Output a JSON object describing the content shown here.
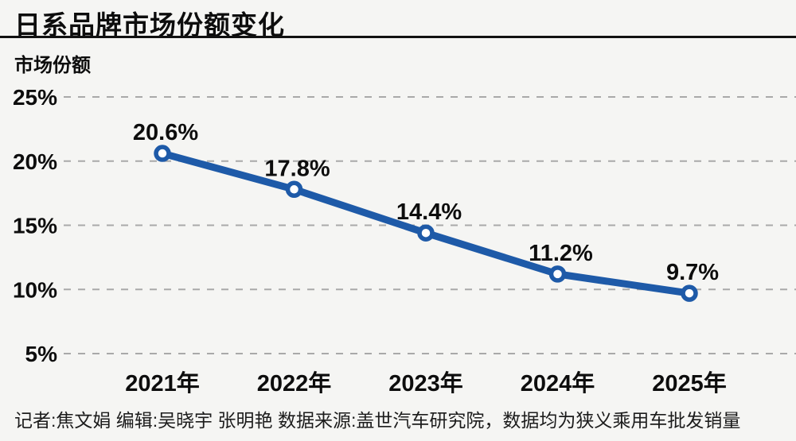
{
  "page": {
    "title": "日系品牌市场份额变化",
    "footer": "记者:焦文娟  编辑:吴晓宇 张明艳  数据来源:盖世汽车研究院，数据均为狭义乘用车批发销量",
    "background_color": "#f5f5f3"
  },
  "chart_data": {
    "type": "line",
    "title": "日系品牌市场份额变化",
    "xlabel": "",
    "ylabel": "市场份额",
    "categories": [
      "2021年",
      "2022年",
      "2023年",
      "2024年",
      "2025年"
    ],
    "values": [
      20.6,
      17.8,
      14.4,
      11.2,
      9.7
    ],
    "data_labels": [
      "20.6%",
      "17.8%",
      "14.4%",
      "11.2%",
      "9.7%"
    ],
    "y_tick_values": [
      25,
      20,
      15,
      10,
      5
    ],
    "y_tick_labels": [
      "25%",
      "20%",
      "15%",
      "10%",
      "5%"
    ],
    "ylim": [
      5,
      25
    ],
    "grid": "horizontal-dashed",
    "legend": "none",
    "line_color": "#1e5aa8",
    "marker_style": "hollow-circle",
    "marker_fill": "#ffffff",
    "grid_color": "#a9a9a9",
    "label_color": "#0d0d0d"
  }
}
